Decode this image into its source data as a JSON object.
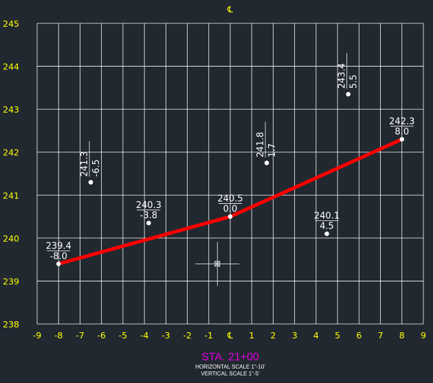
{
  "cl_symbol": "℄",
  "station": "STA. 21+00",
  "horizontal_scale": "HORIZONTAL SCALE 1\"-10'",
  "vertical_scale": "VERTICAL SCALE 1\"-5'",
  "colors": {
    "background": "#212830",
    "grid": "#ffffff",
    "ticks": "#ffff00",
    "profile": "#ff0000",
    "station": "#e000e0"
  },
  "chart_data": {
    "type": "line",
    "xlim": [
      -9,
      9
    ],
    "ylim": [
      238,
      245
    ],
    "x_ticks": [
      "-9",
      "-8",
      "-7",
      "-6",
      "-5",
      "-4",
      "-3",
      "-2",
      "-1",
      "℄",
      "1",
      "2",
      "3",
      "4",
      "5",
      "6",
      "7",
      "8",
      "9"
    ],
    "y_ticks": [
      "238",
      "239",
      "240",
      "241",
      "242",
      "243",
      "244",
      "245"
    ],
    "grid": true,
    "series": [
      {
        "x": [
          -8.0,
          0.0,
          8.0
        ],
        "y": [
          239.4,
          240.5,
          242.3
        ]
      }
    ],
    "horizontal_labels": [
      {
        "x": -8.0,
        "y": 239.4,
        "elev": "239.4",
        "offset": "-8.0"
      },
      {
        "x": -3.8,
        "y": 240.35,
        "elev": "240.3",
        "offset": "-3.8"
      },
      {
        "x": 0.0,
        "y": 240.5,
        "elev": "240.5",
        "offset": "0.0"
      },
      {
        "x": 4.5,
        "y": 240.1,
        "elev": "240.1",
        "offset": "4.5"
      },
      {
        "x": 8.0,
        "y": 242.3,
        "elev": "242.3",
        "offset": "8.0"
      }
    ],
    "vertical_labels": [
      {
        "x": -6.5,
        "y": 241.3,
        "elev": "241.3",
        "offset": "-6.5"
      },
      {
        "x": 1.7,
        "y": 241.75,
        "elev": "241.8",
        "offset": "1.7"
      },
      {
        "x": 5.5,
        "y": 243.35,
        "elev": "243.4",
        "offset": "5.5"
      }
    ],
    "crosshair": {
      "x": -0.6,
      "y": 239.4
    }
  }
}
